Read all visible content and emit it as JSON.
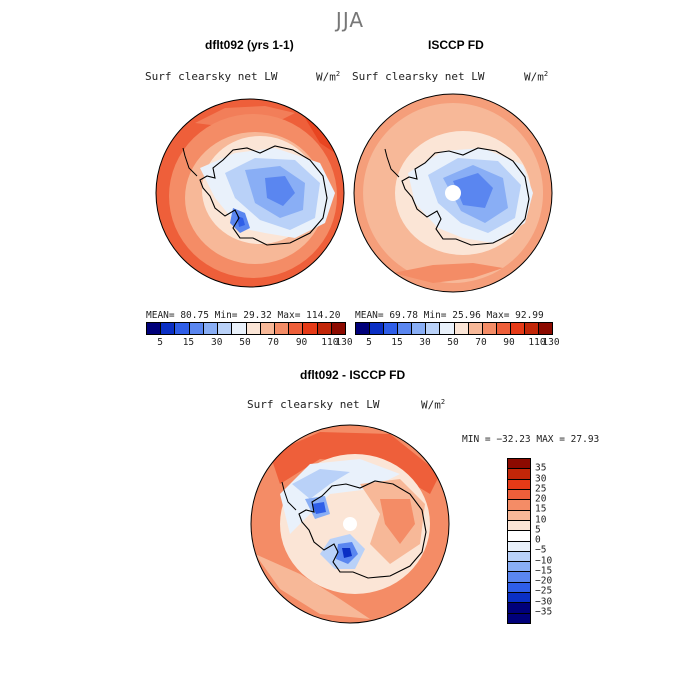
{
  "season": "JJA",
  "panels": [
    {
      "title": "dflt092 (yrs 1-1)",
      "variable": "Surf clearsky net LW",
      "units": "W/m",
      "units_exp": "2",
      "stats": "MEAN=  80.75  Min=  29.32  Max= 114.20"
    },
    {
      "title": "ISCCP FD",
      "variable": "Surf clearsky net LW",
      "units": "W/m",
      "units_exp": "2",
      "stats": "MEAN=  69.78  Min=  25.96  Max=  92.99"
    },
    {
      "title": "dflt092 - ISCCP FD",
      "variable": "Surf clearsky net LW",
      "units": "W/m",
      "units_exp": "2",
      "stats": "MIN = −32.23 MAX =  27.93"
    }
  ],
  "abs_colorbar": {
    "colors": [
      "#00007a",
      "#0a2fc4",
      "#2f5ee8",
      "#5a86f0",
      "#89aef5",
      "#b9d1f8",
      "#e9f1fb",
      "#fbe5d6",
      "#f7b898",
      "#f48c66",
      "#ee5f3a",
      "#e63a17",
      "#c22608",
      "#8c0a00"
    ],
    "ticks": [
      "5",
      "15",
      "30",
      "50",
      "70",
      "90",
      "110",
      "130"
    ]
  },
  "diff_colorbar": {
    "colors_top_to_bottom": [
      "#8c0a00",
      "#c22608",
      "#e63a17",
      "#ee5f3a",
      "#f48c66",
      "#f7b898",
      "#fbe5d6",
      "#ffffff",
      "#e9f1fb",
      "#b9d1f8",
      "#89aef5",
      "#5a86f0",
      "#2f5ee8",
      "#0a2fc4",
      "#00007a",
      "#00007a"
    ],
    "ticks": [
      "35",
      "30",
      "25",
      "20",
      "15",
      "10",
      "5",
      "0",
      "−5",
      "−10",
      "−15",
      "−20",
      "−25",
      "−30",
      "−35"
    ]
  }
}
